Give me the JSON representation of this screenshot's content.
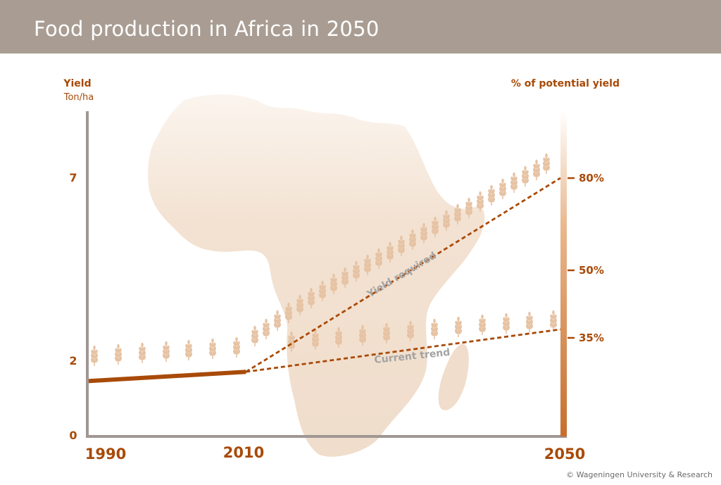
{
  "header": {
    "title": "Food production in Africa in 2050"
  },
  "chart_data": {
    "type": "line",
    "title": "Food production in Africa in 2050",
    "left_axis": {
      "label": "Yield",
      "unit": "Ton/ha",
      "ticks": [
        0,
        2,
        7
      ],
      "range": [
        0,
        9
      ]
    },
    "right_axis": {
      "label": "% of potential yield",
      "ticks": [
        "35%",
        "50%",
        "80%"
      ]
    },
    "x_axis": {
      "ticks": [
        1990,
        2010,
        2050
      ],
      "range": [
        1990,
        2050
      ]
    },
    "series": [
      {
        "name": "",
        "style": "solid",
        "x": [
          1990,
          2010
        ],
        "values": [
          1.5,
          1.75
        ]
      },
      {
        "name": "Yield required",
        "style": "dashed",
        "x": [
          2010,
          2050
        ],
        "values": [
          1.75,
          7.0
        ],
        "percent_end": "80%"
      },
      {
        "name": "Current trend",
        "style": "dashed",
        "x": [
          2010,
          2050
        ],
        "values": [
          1.75,
          2.9
        ],
        "percent_end": "35%"
      }
    ],
    "colors": {
      "line": "#a84a08",
      "axis": "#a09794",
      "wheat": "#e6c3a4",
      "map": "#f4e4d6",
      "label": "#a3a3a3"
    },
    "grid": false,
    "legend": "inline"
  },
  "footer": {
    "copyright": "© Wageningen University & Research"
  }
}
